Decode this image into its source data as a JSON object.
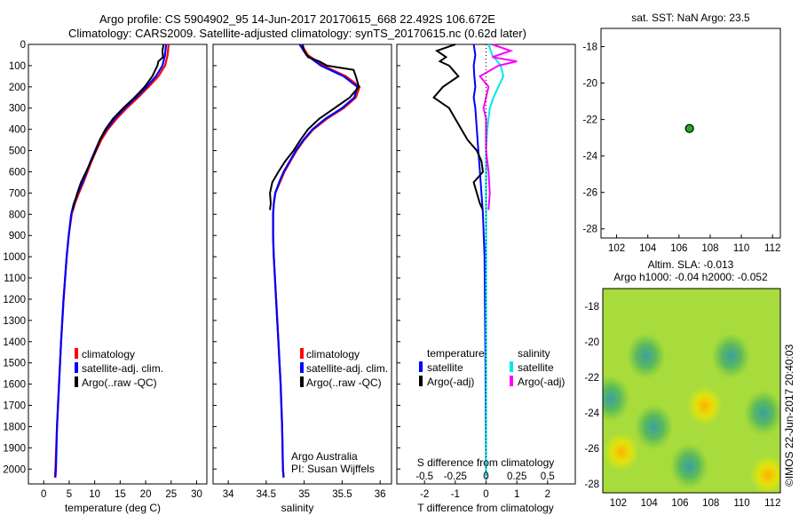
{
  "header": {
    "title_line1": "Argo profile: CS 5904902_95 14-Jun-2017 20170615_668 22.492S 106.672E",
    "title_line2": "Climatology: CARS2009. Satellite-adjusted climatology: synTS_20170615.nc (0.62d later)"
  },
  "colors": {
    "climatology": "#ff0000",
    "satellite": "#0000ff",
    "argo": "#000000",
    "salinity_satellite": "#00e8e8",
    "salinity_argo": "#ff00ff",
    "marker": "#22aa22"
  },
  "panels": {
    "temperature": {
      "xlabel": "temperature (deg C)",
      "xticks": [
        "0",
        "5",
        "10",
        "15",
        "20",
        "25",
        "30"
      ],
      "legend": [
        "climatology",
        "satellite-adj. clim.",
        "Argo(..raw -QC)"
      ]
    },
    "salinity": {
      "xlabel": "salinity",
      "xticks": [
        "34",
        "34.5",
        "35",
        "35.5",
        "36"
      ],
      "legend": [
        "climatology",
        "satellite-adj. clim.",
        "Argo(..raw -QC)"
      ],
      "credit_line1": "Argo Australia",
      "credit_line2": "PI: Susan Wijffels"
    },
    "difference": {
      "top_label": "S difference from climatology",
      "top_ticks": [
        "-0.5",
        "-0.25",
        "0",
        "0.25",
        "0.5"
      ],
      "xlabel": "T difference from climatology",
      "xticks": [
        "-2",
        "-1",
        "0",
        "1",
        "2"
      ],
      "legend_temperature_title": "temperature",
      "legend_salinity_title": "salinity",
      "legend_satellite": "satellite",
      "legend_argo": "Argo(-adj)"
    },
    "sst_map": {
      "title": "sat. SST: NaN Argo: 23.5",
      "xticks": [
        "102",
        "104",
        "106",
        "108",
        "110",
        "112"
      ],
      "yticks": [
        "-18",
        "-20",
        "-22",
        "-24",
        "-26",
        "-28"
      ]
    },
    "sla_map": {
      "title_line1": "Altim. SLA: -0.013",
      "title_line2": "Argo h1000: -0.04 h2000: -0.052",
      "xticks": [
        "102",
        "104",
        "106",
        "108",
        "110",
        "112"
      ],
      "yticks": [
        "-18",
        "-20",
        "-22",
        "-24",
        "-26",
        "-28"
      ],
      "stamp": "©IMOS 22-Jun-2017 20:40:03"
    }
  },
  "chart_data": [
    {
      "type": "line",
      "panel": "temperature",
      "xlabel": "temperature (deg C)",
      "ylabel": "",
      "xlim": [
        -3,
        32
      ],
      "ylim": [
        2070,
        0
      ],
      "yticks": [
        0,
        100,
        200,
        300,
        400,
        500,
        600,
        700,
        800,
        900,
        1000,
        1100,
        1200,
        1300,
        1400,
        1500,
        1600,
        1700,
        1800,
        1900,
        2000
      ],
      "series": [
        {
          "name": "climatology",
          "depth": [
            0,
            50,
            100,
            150,
            200,
            250,
            300,
            350,
            400,
            450,
            500,
            550,
            600,
            650,
            700,
            750,
            800,
            900,
            1000,
            1200,
            1400,
            1600,
            1800,
            2000,
            2040
          ],
          "values": [
            24.5,
            24.3,
            23.8,
            22.5,
            20.6,
            18.5,
            16.3,
            14.3,
            12.6,
            11.3,
            10.3,
            9.4,
            8.6,
            7.8,
            6.9,
            6.1,
            5.5,
            4.9,
            4.5,
            3.9,
            3.4,
            3.0,
            2.6,
            2.3,
            2.2
          ]
        },
        {
          "name": "satellite-adj. clim.",
          "depth": [
            0,
            50,
            100,
            150,
            200,
            250,
            300,
            350,
            400,
            450,
            500,
            550,
            600,
            650,
            700,
            750,
            800,
            900,
            1000,
            1200,
            1400,
            1600,
            1800,
            2000,
            2040
          ],
          "values": [
            24.0,
            23.8,
            23.3,
            22.0,
            20.2,
            18.1,
            15.9,
            13.9,
            12.3,
            11.0,
            10.1,
            9.2,
            8.4,
            7.6,
            6.7,
            5.9,
            5.4,
            4.9,
            4.5,
            3.9,
            3.4,
            3.0,
            2.6,
            2.4,
            2.3
          ]
        },
        {
          "name": "Argo(..raw -QC)",
          "depth": [
            0,
            30,
            60,
            80,
            100,
            150,
            200,
            250,
            300,
            350,
            400,
            450,
            500,
            550,
            600,
            650,
            700,
            750,
            780
          ],
          "values": [
            23.5,
            23.3,
            23.4,
            22.5,
            22.3,
            21.3,
            19.8,
            17.8,
            15.6,
            13.6,
            12.1,
            11.0,
            10.2,
            9.3,
            8.3,
            7.3,
            6.6,
            6.0,
            5.7
          ]
        }
      ]
    },
    {
      "type": "line",
      "panel": "salinity",
      "xlabel": "salinity",
      "ylabel": "",
      "xlim": [
        33.8,
        36.15
      ],
      "ylim": [
        2070,
        0
      ],
      "series": [
        {
          "name": "climatology",
          "depth": [
            0,
            50,
            100,
            150,
            200,
            250,
            300,
            350,
            400,
            450,
            500,
            550,
            600,
            650,
            700,
            750,
            800,
            900,
            1000,
            1200,
            1400,
            1600,
            1800,
            2000,
            2040
          ],
          "values": [
            34.96,
            35.05,
            35.25,
            35.55,
            35.73,
            35.68,
            35.52,
            35.3,
            35.12,
            35.0,
            34.9,
            34.82,
            34.74,
            34.68,
            34.62,
            34.6,
            34.59,
            34.59,
            34.6,
            34.63,
            34.66,
            34.69,
            34.71,
            34.72,
            34.73
          ]
        },
        {
          "name": "satellite-adj. clim.",
          "depth": [
            0,
            50,
            100,
            150,
            200,
            250,
            300,
            350,
            400,
            450,
            500,
            550,
            600,
            650,
            700,
            750,
            800,
            900,
            1000,
            1200,
            1400,
            1600,
            1800,
            2000,
            2040
          ],
          "values": [
            34.94,
            35.03,
            35.22,
            35.52,
            35.7,
            35.66,
            35.5,
            35.28,
            35.11,
            34.99,
            34.89,
            34.81,
            34.73,
            34.67,
            34.62,
            34.6,
            34.59,
            34.59,
            34.6,
            34.63,
            34.66,
            34.69,
            34.71,
            34.72,
            34.73
          ]
        },
        {
          "name": "Argo(..raw -QC)",
          "depth": [
            0,
            30,
            60,
            80,
            100,
            120,
            150,
            200,
            250,
            300,
            350,
            400,
            450,
            500,
            550,
            600,
            650,
            700,
            750,
            780
          ],
          "values": [
            34.98,
            35.0,
            35.05,
            35.2,
            35.3,
            35.65,
            35.68,
            35.72,
            35.6,
            35.4,
            35.2,
            35.05,
            34.95,
            34.86,
            34.75,
            34.66,
            34.58,
            34.55,
            34.56,
            34.55
          ]
        }
      ]
    },
    {
      "type": "line",
      "panel": "difference",
      "xlabel": "T difference from climatology",
      "x2label": "S difference from climatology",
      "xlim": [
        -2.9,
        2.9
      ],
      "x2lim": [
        -0.725,
        0.725
      ],
      "ylim": [
        2070,
        0
      ],
      "series": [
        {
          "name": "temperature satellite",
          "depth": [
            0,
            50,
            100,
            150,
            200,
            250,
            300,
            400,
            500,
            600,
            700,
            800,
            1000,
            1500,
            2040
          ],
          "values": [
            -0.4,
            -0.35,
            -0.4,
            -0.38,
            -0.35,
            -0.4,
            -0.35,
            -0.3,
            -0.25,
            -0.2,
            -0.15,
            -0.1,
            -0.05,
            -0.02,
            0.0
          ]
        },
        {
          "name": "temperature Argo(-adj)",
          "depth": [
            0,
            30,
            60,
            80,
            100,
            150,
            200,
            250,
            300,
            350,
            400,
            450,
            500,
            550,
            600,
            650,
            700,
            750,
            780
          ],
          "values": [
            -1.0,
            -1.6,
            -1.3,
            -1.5,
            -1.2,
            -0.9,
            -1.4,
            -1.7,
            -1.2,
            -1.0,
            -0.8,
            -0.6,
            -0.3,
            -0.15,
            -0.1,
            -0.4,
            -0.3,
            -0.2,
            -0.1
          ]
        },
        {
          "name": "salinity satellite",
          "depth": [
            0,
            50,
            100,
            150,
            200,
            250,
            300,
            400,
            500,
            700,
            1000,
            2040
          ],
          "values": [
            0.02,
            0.05,
            0.12,
            0.14,
            0.1,
            0.06,
            0.03,
            0.01,
            0.0,
            0.0,
            0.0,
            0.0
          ]
        },
        {
          "name": "salinity Argo(-adj)",
          "depth": [
            0,
            30,
            60,
            80,
            100,
            150,
            200,
            250,
            300,
            350,
            400,
            500,
            600,
            700,
            780
          ],
          "values": [
            0.05,
            0.2,
            0.05,
            0.25,
            0.1,
            -0.05,
            0.02,
            0.0,
            -0.02,
            0.0,
            0.0,
            0.0,
            0.02,
            0.03,
            0.02
          ]
        }
      ]
    },
    {
      "type": "scatter",
      "panel": "sst_map",
      "xlim": [
        101,
        112.5
      ],
      "ylim": [
        -28.5,
        -17
      ],
      "points": [
        {
          "lon": 106.672,
          "lat": -22.492
        }
      ]
    },
    {
      "type": "heatmap",
      "panel": "sla_map",
      "xlim": [
        101,
        112.5
      ],
      "ylim": [
        -28.5,
        -17
      ],
      "blobs": [
        {
          "lon": 103.8,
          "lat": -20.8,
          "kind": "low"
        },
        {
          "lon": 101.5,
          "lat": -23.2,
          "kind": "low"
        },
        {
          "lon": 104.3,
          "lat": -24.8,
          "kind": "low"
        },
        {
          "lon": 106.6,
          "lat": -27.0,
          "kind": "low"
        },
        {
          "lon": 109.3,
          "lat": -20.8,
          "kind": "low"
        },
        {
          "lon": 111.4,
          "lat": -24.0,
          "kind": "low"
        },
        {
          "lon": 107.6,
          "lat": -23.6,
          "kind": "high"
        },
        {
          "lon": 111.7,
          "lat": -27.5,
          "kind": "high"
        },
        {
          "lon": 102.2,
          "lat": -26.2,
          "kind": "high"
        }
      ]
    }
  ]
}
